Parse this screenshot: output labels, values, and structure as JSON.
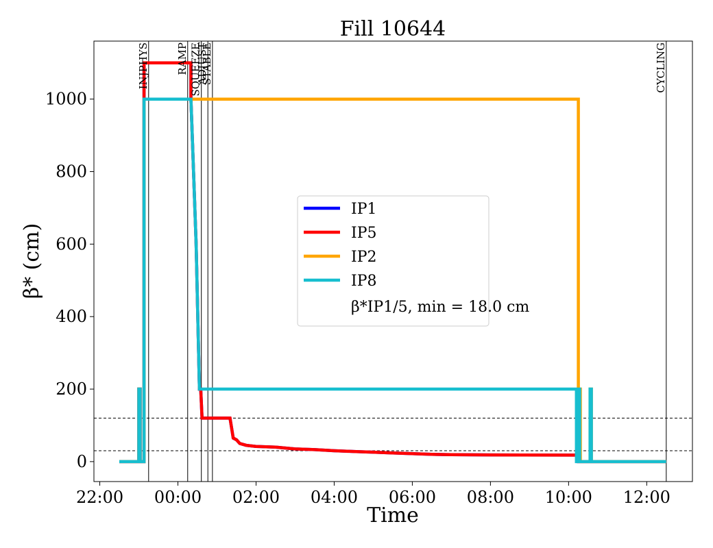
{
  "chart_data": {
    "type": "line",
    "title": "Fill 10644",
    "xlabel": "Time",
    "ylabel": "β* (cm)",
    "ylim": [
      -55,
      1160
    ],
    "xlim": [
      "22:00 -0.15h",
      "13:10"
    ],
    "x_ticks": [
      "22:00",
      "00:00",
      "02:00",
      "04:00",
      "06:00",
      "08:00",
      "10:00",
      "12:00"
    ],
    "y_ticks": [
      "0",
      "200",
      "400",
      "600",
      "800",
      "1000"
    ],
    "grid": false,
    "legend_position": "center",
    "legend": [
      "IP1",
      "IP5",
      "IP2",
      "IP8"
    ],
    "legend_note": "β*IP1/5, min = 18.0 cm",
    "horizontal_reference_lines": [
      120,
      30
    ],
    "mode_markers": [
      {
        "label": "INJPHYS",
        "time": "23:15"
      },
      {
        "label": "RAMP",
        "time": "00:15"
      },
      {
        "label": "SQUEEZE",
        "time": "00:36"
      },
      {
        "label": "ADJUST",
        "time": "00:46"
      },
      {
        "label": "STABLE",
        "time": "00:53"
      },
      {
        "label": "CYCLING",
        "time": "12:30"
      }
    ],
    "series": [
      {
        "name": "IP1",
        "color": "#0000ff",
        "points": [
          [
            "22:30",
            0
          ],
          [
            "23:00",
            0
          ],
          [
            "23:00",
            200
          ],
          [
            "23:02",
            200
          ],
          [
            "23:02",
            0
          ],
          [
            "23:08",
            0
          ],
          [
            "23:08",
            1100
          ],
          [
            "00:20",
            1100
          ],
          [
            "00:20",
            1000
          ],
          [
            "00:28",
            600
          ],
          [
            "00:33",
            200
          ],
          [
            "00:35",
            200
          ],
          [
            "00:37",
            120
          ],
          [
            "01:20",
            120
          ],
          [
            "01:25",
            65
          ],
          [
            "01:30",
            60
          ],
          [
            "01:35",
            50
          ],
          [
            "01:45",
            45
          ],
          [
            "02:00",
            42
          ],
          [
            "02:30",
            40
          ],
          [
            "03:00",
            35
          ],
          [
            "03:30",
            33
          ],
          [
            "04:00",
            30
          ],
          [
            "04:30",
            28
          ],
          [
            "05:00",
            26
          ],
          [
            "05:30",
            24
          ],
          [
            "06:00",
            22
          ],
          [
            "06:30",
            20
          ],
          [
            "07:00",
            19
          ],
          [
            "08:00",
            18.5
          ],
          [
            "10:10",
            18
          ],
          [
            "10:15",
            18
          ],
          [
            "10:15",
            0
          ],
          [
            "12:30",
            0
          ]
        ]
      },
      {
        "name": "IP5",
        "color": "#ff0000",
        "points": [
          [
            "22:30",
            0
          ],
          [
            "23:00",
            0
          ],
          [
            "23:00",
            200
          ],
          [
            "23:02",
            200
          ],
          [
            "23:02",
            0
          ],
          [
            "23:08",
            0
          ],
          [
            "23:08",
            1100
          ],
          [
            "00:20",
            1100
          ],
          [
            "00:20",
            1000
          ],
          [
            "00:28",
            600
          ],
          [
            "00:33",
            200
          ],
          [
            "00:35",
            200
          ],
          [
            "00:37",
            120
          ],
          [
            "01:20",
            120
          ],
          [
            "01:25",
            65
          ],
          [
            "01:30",
            60
          ],
          [
            "01:35",
            50
          ],
          [
            "01:45",
            45
          ],
          [
            "02:00",
            42
          ],
          [
            "02:30",
            40
          ],
          [
            "03:00",
            35
          ],
          [
            "03:30",
            33
          ],
          [
            "04:00",
            30
          ],
          [
            "04:30",
            28
          ],
          [
            "05:00",
            26
          ],
          [
            "05:30",
            24
          ],
          [
            "06:00",
            22
          ],
          [
            "06:30",
            20
          ],
          [
            "07:00",
            19
          ],
          [
            "08:00",
            18.5
          ],
          [
            "10:10",
            18
          ],
          [
            "10:15",
            18
          ],
          [
            "10:15",
            0
          ],
          [
            "12:30",
            0
          ]
        ]
      },
      {
        "name": "IP2",
        "color": "#ffa500",
        "points": [
          [
            "22:30",
            0
          ],
          [
            "23:00",
            0
          ],
          [
            "23:00",
            200
          ],
          [
            "23:02",
            200
          ],
          [
            "23:02",
            0
          ],
          [
            "23:08",
            0
          ],
          [
            "23:08",
            1000
          ],
          [
            "00:20",
            1000
          ],
          [
            "10:15",
            1000
          ],
          [
            "10:15",
            200
          ],
          [
            "10:18",
            200
          ],
          [
            "10:18",
            0
          ],
          [
            "10:33",
            0
          ],
          [
            "10:33",
            200
          ],
          [
            "10:35",
            200
          ],
          [
            "10:35",
            0
          ],
          [
            "12:30",
            0
          ]
        ]
      },
      {
        "name": "IP8",
        "color": "#17becf",
        "points": [
          [
            "22:30",
            0
          ],
          [
            "23:00",
            0
          ],
          [
            "23:00",
            200
          ],
          [
            "23:02",
            200
          ],
          [
            "23:02",
            0
          ],
          [
            "23:08",
            0
          ],
          [
            "23:08",
            1000
          ],
          [
            "00:20",
            1000
          ],
          [
            "00:28",
            600
          ],
          [
            "00:33",
            200
          ],
          [
            "10:12",
            200
          ],
          [
            "10:12",
            0
          ],
          [
            "10:15",
            0
          ],
          [
            "10:15",
            200
          ],
          [
            "10:17",
            200
          ],
          [
            "10:17",
            0
          ],
          [
            "10:33",
            0
          ],
          [
            "10:33",
            200
          ],
          [
            "10:35",
            200
          ],
          [
            "10:35",
            0
          ],
          [
            "12:30",
            0
          ]
        ]
      }
    ]
  }
}
